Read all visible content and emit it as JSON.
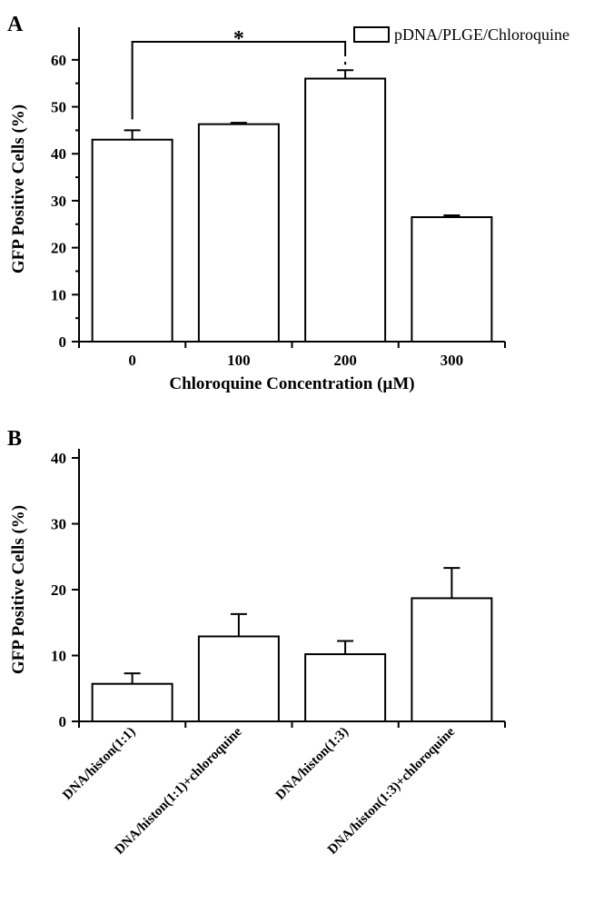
{
  "chart_data": [
    {
      "type": "bar",
      "panel_label": "A",
      "categories": [
        "0",
        "100",
        "200",
        "300"
      ],
      "values": [
        43,
        46.3,
        56,
        26.5
      ],
      "errors": [
        2,
        0.3,
        1.8,
        0.4
      ],
      "ylabel": "GFP Positive Cells (%)",
      "xlabel": "Chloroquine Concentration (µM)",
      "ylim": [
        0,
        65
      ],
      "yticks": [
        0,
        10,
        20,
        30,
        40,
        50,
        60
      ],
      "legend": {
        "label": "pDNA/PLGE/Chloroquine",
        "position": "top-right"
      },
      "significance": {
        "from": 0,
        "to": 2,
        "label": "*"
      }
    },
    {
      "type": "bar",
      "panel_label": "B",
      "categories": [
        "DNA/histon(1:1)",
        "DNA/histon(1:1)+chloroquine",
        "DNA/histon(1:3)",
        "DNA/histon(1:3)+chloroquine"
      ],
      "values": [
        5.7,
        12.9,
        10.2,
        18.7
      ],
      "errors": [
        1.6,
        3.4,
        2,
        4.6
      ],
      "ylabel": "GFP Positive Cells (%)",
      "xlabel": "",
      "ylim": [
        0,
        40
      ],
      "yticks": [
        0,
        10,
        20,
        30,
        40
      ]
    }
  ]
}
